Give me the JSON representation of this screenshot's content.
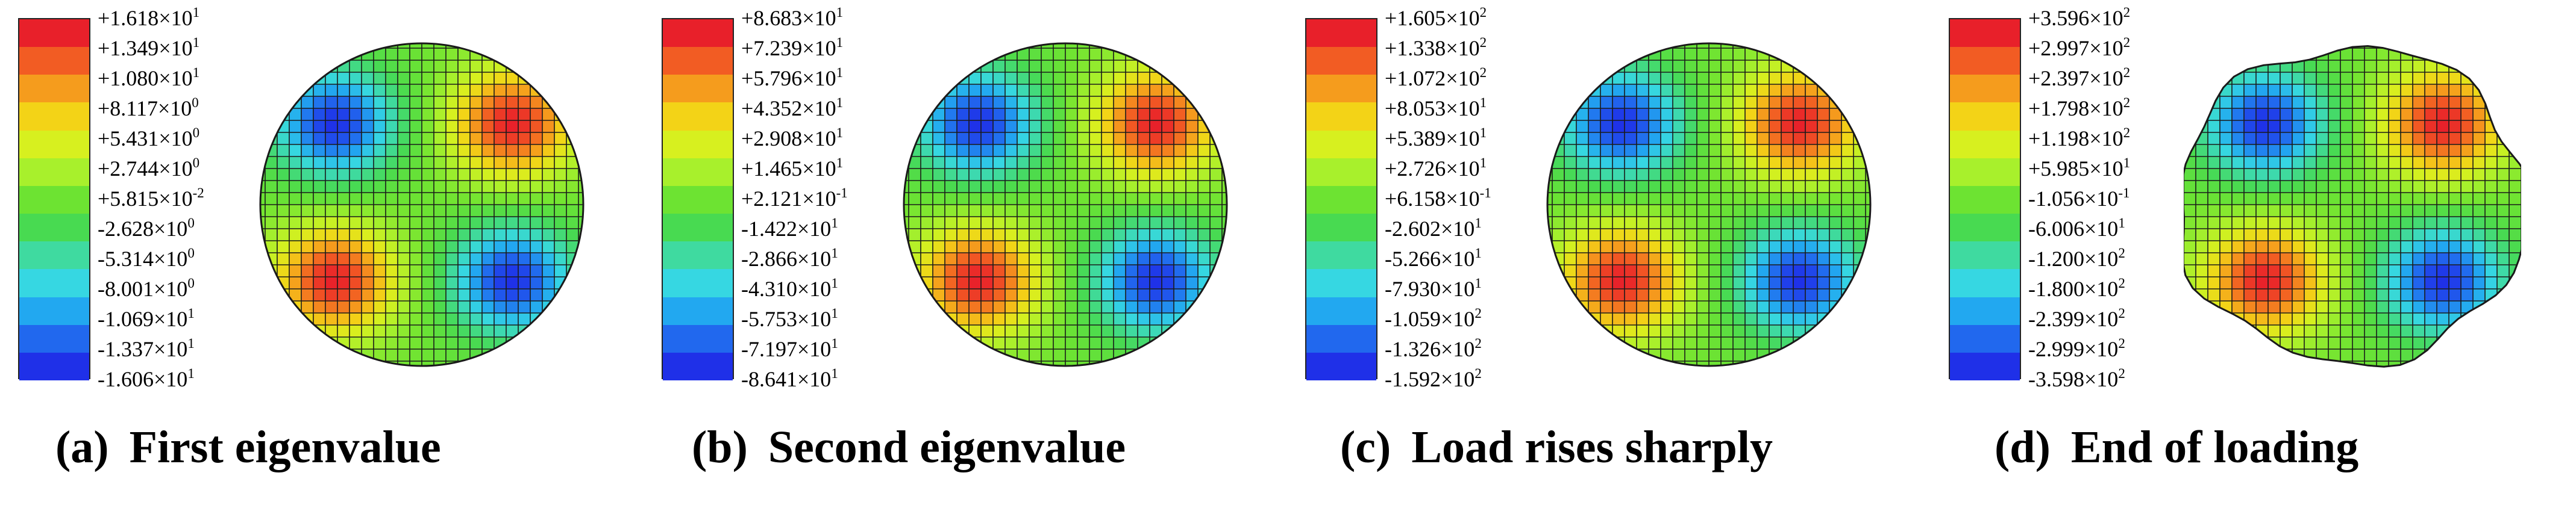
{
  "colors": [
    "#e8202a",
    "#f25c23",
    "#f59c1d",
    "#f3d317",
    "#d7f01f",
    "#a8f02c",
    "#6de332",
    "#48da51",
    "#3fdaa0",
    "#36d7e2",
    "#22a8f0",
    "#2168ee",
    "#1f30e8"
  ],
  "chart_data": [
    {
      "type": "heatmap",
      "caption_letter": "(a)",
      "caption_text": "First eigenvalue",
      "legend_labels": [
        {
          "m": "+1.618",
          "e": "1"
        },
        {
          "m": "+1.349",
          "e": "1"
        },
        {
          "m": "+1.080",
          "e": "1"
        },
        {
          "m": "+8.117",
          "e": "0"
        },
        {
          "m": "+5.431",
          "e": "0"
        },
        {
          "m": "+2.744",
          "e": "0"
        },
        {
          "m": "+5.815",
          "e": "-2"
        },
        {
          "m": "-2.628",
          "e": "0"
        },
        {
          "m": "-5.314",
          "e": "0"
        },
        {
          "m": "-8.001",
          "e": "0"
        },
        {
          "m": "-1.069",
          "e": "1"
        },
        {
          "m": "-1.337",
          "e": "1"
        },
        {
          "m": "-1.606",
          "e": "1"
        }
      ],
      "extremes": {
        "max": 16.18,
        "min": -16.06
      },
      "shape": "circle"
    },
    {
      "type": "heatmap",
      "caption_letter": "(b)",
      "caption_text": "Second eigenvalue",
      "legend_labels": [
        {
          "m": "+8.683",
          "e": "1"
        },
        {
          "m": "+7.239",
          "e": "1"
        },
        {
          "m": "+5.796",
          "e": "1"
        },
        {
          "m": "+4.352",
          "e": "1"
        },
        {
          "m": "+2.908",
          "e": "1"
        },
        {
          "m": "+1.465",
          "e": "1"
        },
        {
          "m": "+2.121",
          "e": "-1"
        },
        {
          "m": "-1.422",
          "e": "1"
        },
        {
          "m": "-2.866",
          "e": "1"
        },
        {
          "m": "-4.310",
          "e": "1"
        },
        {
          "m": "-5.753",
          "e": "1"
        },
        {
          "m": "-7.197",
          "e": "1"
        },
        {
          "m": "-8.641",
          "e": "1"
        }
      ],
      "extremes": {
        "max": 86.83,
        "min": -86.41
      },
      "shape": "circle"
    },
    {
      "type": "heatmap",
      "caption_letter": "(c)",
      "caption_text": "Load rises sharply",
      "legend_labels": [
        {
          "m": "+1.605",
          "e": "2"
        },
        {
          "m": "+1.338",
          "e": "2"
        },
        {
          "m": "+1.072",
          "e": "2"
        },
        {
          "m": "+8.053",
          "e": "1"
        },
        {
          "m": "+5.389",
          "e": "1"
        },
        {
          "m": "+2.726",
          "e": "1"
        },
        {
          "m": "+6.158",
          "e": "-1"
        },
        {
          "m": "-2.602",
          "e": "1"
        },
        {
          "m": "-5.266",
          "e": "1"
        },
        {
          "m": "-7.930",
          "e": "1"
        },
        {
          "m": "-1.059",
          "e": "2"
        },
        {
          "m": "-1.326",
          "e": "2"
        },
        {
          "m": "-1.592",
          "e": "2"
        }
      ],
      "extremes": {
        "max": 160.5,
        "min": -159.2
      },
      "shape": "circle"
    },
    {
      "type": "heatmap",
      "caption_letter": "(d)",
      "caption_text": "End of loading",
      "legend_labels": [
        {
          "m": "+3.596",
          "e": "2"
        },
        {
          "m": "+2.997",
          "e": "2"
        },
        {
          "m": "+2.397",
          "e": "2"
        },
        {
          "m": "+1.798",
          "e": "2"
        },
        {
          "m": "+1.198",
          "e": "2"
        },
        {
          "m": "+5.985",
          "e": "1"
        },
        {
          "m": "-1.056",
          "e": "-1"
        },
        {
          "m": "-6.006",
          "e": "1"
        },
        {
          "m": "-1.200",
          "e": "2"
        },
        {
          "m": "-1.800",
          "e": "2"
        },
        {
          "m": "-2.399",
          "e": "2"
        },
        {
          "m": "-2.999",
          "e": "2"
        },
        {
          "m": "-3.598",
          "e": "2"
        }
      ],
      "extremes": {
        "max": 359.6,
        "min": -359.8
      },
      "shape": "deformed-circle"
    }
  ]
}
